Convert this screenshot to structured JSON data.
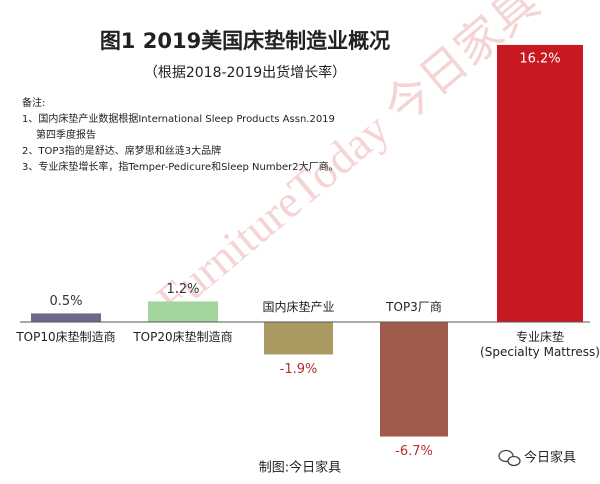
{
  "chart_data": {
    "type": "bar",
    "title": "图1  2019美国床垫制造业概况",
    "subtitle": "（根据2018-2019出货增长率）",
    "categories": [
      "TOP10床垫制造商",
      "TOP20床垫制造商",
      "国内床垫产业",
      "TOP3厂商",
      "专业床垫\n(Specialty Mattress)"
    ],
    "values": [
      0.5,
      1.2,
      -1.9,
      -6.7,
      16.2
    ],
    "value_labels": [
      "0.5%",
      "1.2%",
      "-1.9%",
      "-6.7%",
      "16.2%"
    ],
    "colors": [
      "#6e6a8c",
      "#a3d59e",
      "#aa9a62",
      "#a15b4d",
      "#c7191f"
    ],
    "ylim": [
      -7.2,
      16.5
    ],
    "notes": {
      "title": "备注:",
      "lines": [
        "1、国内床垫产业数据根据International Sleep Products Assn.2019",
        "第四季度报告",
        "2、TOP3指的是舒达、席梦思和丝涟3大品牌",
        "3、专业床垫增长率，指Temper-Pedicure和Sleep Number2大厂商。"
      ]
    },
    "watermark": "FurnitureToday 今日家具",
    "footer": "制图:今日家具",
    "logo": "今日家具"
  }
}
